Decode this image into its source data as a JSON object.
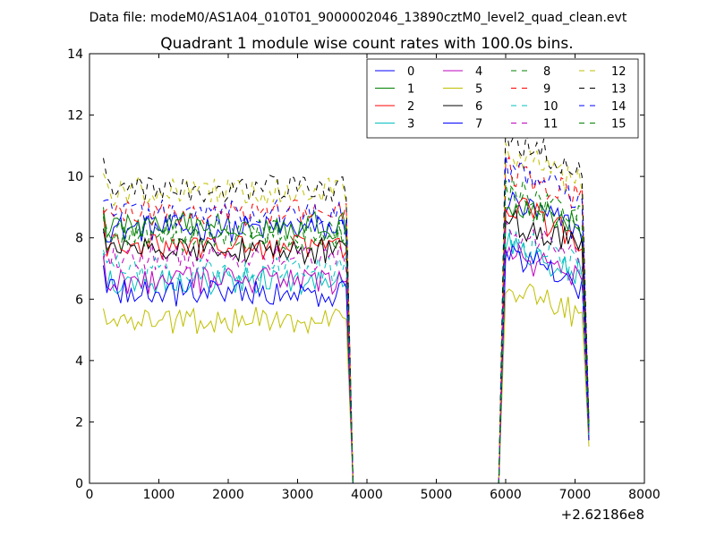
{
  "suptitle": "Data file: modeM0/AS1A04_010T01_9000002046_13890cztM0_level2_quad_clean.evt",
  "chart_data": {
    "type": "line",
    "title": "Quadrant 1 module wise count rates with 100.0s bins.",
    "xlabel": "",
    "ylabel": "",
    "x_offset_label": "+2.62186e8",
    "xlim": [
      0,
      8000
    ],
    "ylim": [
      0,
      14
    ],
    "xticks": [
      "0",
      "1000",
      "2000",
      "3000",
      "4000",
      "5000",
      "6000",
      "7000",
      "8000"
    ],
    "yticks": [
      "0",
      "2",
      "4",
      "6",
      "8",
      "10",
      "12",
      "14"
    ],
    "grid": false,
    "legend_location": "top-right",
    "legend_columns": 4,
    "bin_width_s": 100,
    "gap": {
      "end_x": 3800,
      "resume_x": 5900
    },
    "segment1_x": [
      200,
      3700
    ],
    "segment2_x": [
      6000,
      7100
    ],
    "final_x": 7200,
    "series": [
      {
        "name": "0",
        "color": "#0000ff",
        "dash": "solid",
        "level1": 8.3,
        "level2": 9.2,
        "first": 8.2,
        "drop": 8.0,
        "final": 1.8
      },
      {
        "name": "1",
        "color": "#008000",
        "dash": "solid",
        "level1": 8.4,
        "level2": 9.3,
        "first": 9.0,
        "drop": 8.1,
        "final": 1.6
      },
      {
        "name": "2",
        "color": "#ff0000",
        "dash": "solid",
        "level1": 7.7,
        "level2": 9.2,
        "first": 8.9,
        "drop": 7.5,
        "final": 1.5
      },
      {
        "name": "3",
        "color": "#00bfbf",
        "dash": "solid",
        "level1": 6.6,
        "level2": 7.8,
        "first": 7.5,
        "drop": 6.6,
        "final": 1.5
      },
      {
        "name": "4",
        "color": "#bf00bf",
        "dash": "solid",
        "level1": 6.6,
        "level2": 7.5,
        "first": 7.4,
        "drop": 6.4,
        "final": 1.4
      },
      {
        "name": "5",
        "color": "#bfbf00",
        "dash": "solid",
        "level1": 5.3,
        "level2": 6.3,
        "first": 5.7,
        "drop": 5.3,
        "final": 1.2
      },
      {
        "name": "6",
        "color": "#000000",
        "dash": "solid",
        "level1": 7.6,
        "level2": 8.6,
        "first": 8.3,
        "drop": 7.6,
        "final": 1.7
      },
      {
        "name": "7",
        "color": "#0000ff",
        "dash": "solid",
        "level1": 6.2,
        "level2": 7.6,
        "first": 7.1,
        "drop": 6.1,
        "final": 1.4
      },
      {
        "name": "8",
        "color": "#008000",
        "dash": "dashed",
        "level1": 8.2,
        "level2": 9.7,
        "first": 8.8,
        "drop": 8.4,
        "final": 1.8
      },
      {
        "name": "9",
        "color": "#ff0000",
        "dash": "dashed",
        "level1": 8.8,
        "level2": 10.3,
        "first": 8.8,
        "drop": 8.9,
        "final": 1.9
      },
      {
        "name": "10",
        "color": "#00bfbf",
        "dash": "dashed",
        "level1": 7.0,
        "level2": 8.1,
        "first": 7.6,
        "drop": 6.8,
        "final": 1.5
      },
      {
        "name": "11",
        "color": "#bf00bf",
        "dash": "dashed",
        "level1": 7.4,
        "level2": 8.3,
        "first": 7.3,
        "drop": 7.3,
        "final": 1.6
      },
      {
        "name": "12",
        "color": "#bfbf00",
        "dash": "dashed",
        "level1": 9.5,
        "level2": 10.8,
        "first": 10.1,
        "drop": 9.5,
        "final": 2.0
      },
      {
        "name": "13",
        "color": "#000000",
        "dash": "dashed",
        "level1": 9.6,
        "level2": 11.3,
        "first": 10.6,
        "drop": 9.9,
        "final": 2.0
      },
      {
        "name": "14",
        "color": "#0000ff",
        "dash": "dashed",
        "level1": 8.8,
        "level2": 10.3,
        "first": 9.2,
        "drop": 9.1,
        "final": 1.9
      },
      {
        "name": "15",
        "color": "#008000",
        "dash": "dashed",
        "level1": 8.0,
        "level2": 9.4,
        "first": 8.7,
        "drop": 8.2,
        "final": 1.7
      }
    ]
  }
}
